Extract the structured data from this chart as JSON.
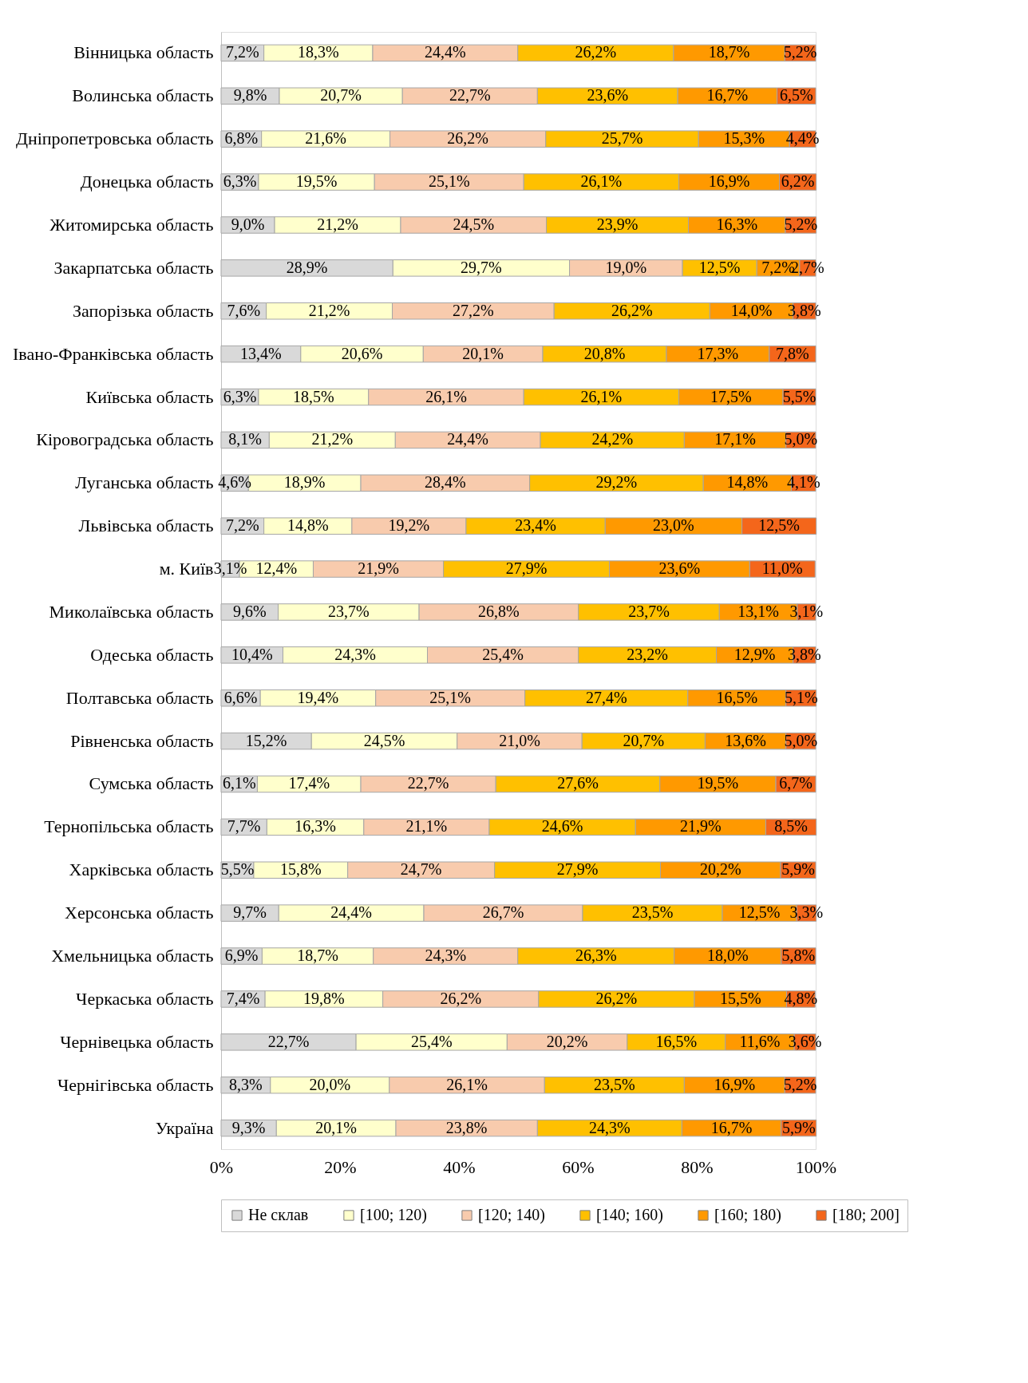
{
  "chart_data": {
    "type": "bar",
    "orientation": "horizontal",
    "stacked": true,
    "legend": "bottom",
    "grid": false,
    "categories": [
      "Вінницька  область",
      "Волинська  область",
      "Дніпропетровська  область",
      "Донецька  область",
      "Житомирська  область",
      "Закарпатська  область",
      "Запорізька  область",
      "Івано-Франківська  область",
      "Київська  область",
      "Кіровоградська  область",
      "Луганська  область",
      "Львівська  область",
      "м. Київ",
      "Миколаївська  область",
      "Одеська  область",
      "Полтавська  область",
      "Рівненська  область",
      "Сумська  область",
      "Тернопільська  область",
      "Харківська  область",
      "Херсонська  область",
      "Хмельницька  область",
      "Черкаська  область",
      "Чернівецька  область",
      "Чернігівська  область",
      "Україна"
    ],
    "xlim": [
      0,
      100
    ],
    "xticks": [
      {
        "value": 0,
        "label": "0%"
      },
      {
        "value": 20,
        "label": "20%"
      },
      {
        "value": 40,
        "label": "40%"
      },
      {
        "value": 60,
        "label": "60%"
      },
      {
        "value": 80,
        "label": "80%"
      },
      {
        "value": 100,
        "label": "100%"
      }
    ],
    "series": [
      {
        "name": "Не склав",
        "color": "#d9d9d9",
        "values": [
          7.2,
          9.8,
          6.8,
          6.3,
          9.0,
          28.9,
          7.6,
          13.4,
          6.3,
          8.1,
          4.6,
          7.2,
          3.1,
          9.6,
          10.4,
          6.6,
          15.2,
          6.1,
          7.7,
          5.5,
          9.7,
          6.9,
          7.4,
          22.7,
          8.3,
          9.3
        ],
        "value_labels": [
          "7,2%",
          "9,8%",
          "6,8%",
          "6,3%",
          "9,0%",
          "28,9%",
          "7,6%",
          "13,4%",
          "6,3%",
          "8,1%",
          "4,6%",
          "7,2%",
          "3,1%",
          "9,6%",
          "10,4%",
          "6,6%",
          "15,2%",
          "6,1%",
          "7,7%",
          "5,5%",
          "9,7%",
          "6,9%",
          "7,4%",
          "22,7%",
          "8,3%",
          "9,3%"
        ]
      },
      {
        "name": "[100; 120)",
        "color": "#ffffcc",
        "values": [
          18.3,
          20.7,
          21.6,
          19.5,
          21.2,
          29.7,
          21.2,
          20.6,
          18.5,
          21.2,
          18.9,
          14.8,
          12.4,
          23.7,
          24.3,
          19.4,
          24.5,
          17.4,
          16.3,
          15.8,
          24.4,
          18.7,
          19.8,
          25.4,
          20.0,
          20.1
        ],
        "value_labels": [
          "18,3%",
          "20,7%",
          "21,6%",
          "19,5%",
          "21,2%",
          "29,7%",
          "21,2%",
          "20,6%",
          "18,5%",
          "21,2%",
          "18,9%",
          "14,8%",
          "12,4%",
          "23,7%",
          "24,3%",
          "19,4%",
          "24,5%",
          "17,4%",
          "16,3%",
          "15,8%",
          "24,4%",
          "18,7%",
          "19,8%",
          "25,4%",
          "20,0%",
          "20,1%"
        ]
      },
      {
        "name": "[120; 140)",
        "color": "#f8cbad",
        "values": [
          24.4,
          22.7,
          26.2,
          25.1,
          24.5,
          19.0,
          27.2,
          20.1,
          26.1,
          24.4,
          28.4,
          19.2,
          21.9,
          26.8,
          25.4,
          25.1,
          21.0,
          22.7,
          21.1,
          24.7,
          26.7,
          24.3,
          26.2,
          20.2,
          26.1,
          23.8
        ],
        "value_labels": [
          "24,4%",
          "22,7%",
          "26,2%",
          "25,1%",
          "24,5%",
          "19,0%",
          "27,2%",
          "20,1%",
          "26,1%",
          "24,4%",
          "28,4%",
          "19,2%",
          "21,9%",
          "26,8%",
          "25,4%",
          "25,1%",
          "21,0%",
          "22,7%",
          "21,1%",
          "24,7%",
          "26,7%",
          "24,3%",
          "26,2%",
          "20,2%",
          "26,1%",
          "23,8%"
        ]
      },
      {
        "name": "[140; 160)",
        "color": "#ffc000",
        "values": [
          26.2,
          23.6,
          25.7,
          26.1,
          23.9,
          12.5,
          26.2,
          20.8,
          26.1,
          24.2,
          29.2,
          23.4,
          27.9,
          23.7,
          23.2,
          27.4,
          20.7,
          27.6,
          24.6,
          27.9,
          23.5,
          26.3,
          26.2,
          16.5,
          23.5,
          24.3
        ],
        "value_labels": [
          "26,2%",
          "23,6%",
          "25,7%",
          "26,1%",
          "23,9%",
          "12,5%",
          "26,2%",
          "20,8%",
          "26,1%",
          "24,2%",
          "29,2%",
          "23,4%",
          "27,9%",
          "23,7%",
          "23,2%",
          "27,4%",
          "20,7%",
          "27,6%",
          "24,6%",
          "27,9%",
          "23,5%",
          "26,3%",
          "26,2%",
          "16,5%",
          "23,5%",
          "24,3%"
        ]
      },
      {
        "name": "[160; 180)",
        "color": "#ff9900",
        "values": [
          18.7,
          16.7,
          15.3,
          16.9,
          16.3,
          7.2,
          14.0,
          17.3,
          17.5,
          17.1,
          14.8,
          23.0,
          23.6,
          13.1,
          12.9,
          16.5,
          13.6,
          19.5,
          21.9,
          20.2,
          12.5,
          18.0,
          15.5,
          11.6,
          16.9,
          16.7
        ],
        "value_labels": [
          "18,7%",
          "16,7%",
          "15,3%",
          "16,9%",
          "16,3%",
          "7,2%",
          "14,0%",
          "17,3%",
          "17,5%",
          "17,1%",
          "14,8%",
          "23,0%",
          "23,6%",
          "13,1%",
          "12,9%",
          "16,5%",
          "13,6%",
          "19,5%",
          "21,9%",
          "20,2%",
          "12,5%",
          "18,0%",
          "15,5%",
          "11,6%",
          "16,9%",
          "16,7%"
        ]
      },
      {
        "name": "[180; 200]",
        "color": "#f4661b",
        "values": [
          5.2,
          6.5,
          4.4,
          6.2,
          5.2,
          2.7,
          3.8,
          7.8,
          5.5,
          5.0,
          4.1,
          12.5,
          11.0,
          3.1,
          3.8,
          5.1,
          5.0,
          6.7,
          8.5,
          5.9,
          3.3,
          5.8,
          4.8,
          3.6,
          5.2,
          5.9
        ],
        "value_labels": [
          "5,2%",
          "6,5%",
          "4,4%",
          "6,2%",
          "5,2%",
          "2,7%",
          "3,8%",
          "7,8%",
          "5,5%",
          "5,0%",
          "4,1%",
          "12,5%",
          "11,0%",
          "3,1%",
          "3,8%",
          "5,1%",
          "5,0%",
          "6,7%",
          "8,5%",
          "5,9%",
          "3,3%",
          "5,8%",
          "4,8%",
          "3,6%",
          "5,2%",
          "5,9%"
        ]
      }
    ]
  }
}
